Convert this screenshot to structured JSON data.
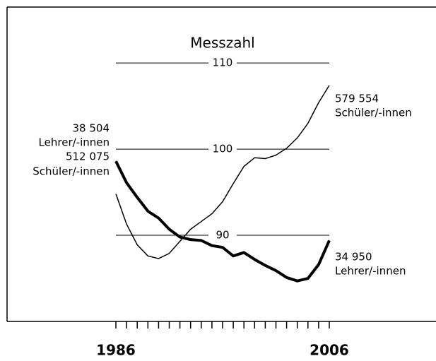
{
  "chart_data": {
    "type": "line",
    "title": "Messzahl",
    "x": [
      1986,
      1987,
      1988,
      1989,
      1990,
      1991,
      1992,
      1993,
      1994,
      1995,
      1996,
      1997,
      1998,
      1999,
      2000,
      2001,
      2002,
      2003,
      2004,
      2005,
      2006
    ],
    "series": [
      {
        "color": "#000000",
        "width": 4,
        "values": [
          98.6,
          96.1,
          94.4,
          92.8,
          92.0,
          90.7,
          89.8,
          89.5,
          89.4,
          88.8,
          88.6,
          87.6,
          88.0,
          87.2,
          86.5,
          85.9,
          85.1,
          84.7,
          85.0,
          86.6,
          89.4
        ]
      },
      {
        "color": "#000000",
        "width": 1.5,
        "values": [
          94.8,
          91.3,
          88.9,
          87.6,
          87.3,
          87.9,
          89.3,
          90.7,
          91.6,
          92.5,
          93.9,
          96.0,
          98.0,
          99.0,
          98.9,
          99.3,
          100.1,
          101.3,
          103.0,
          105.4,
          107.4
        ]
      }
    ],
    "xlim": [
      1986,
      2006
    ],
    "xticks": [
      1986,
      2006
    ],
    "ylim": [
      80,
      116
    ],
    "yticks": [
      90,
      100,
      110
    ],
    "grid": true,
    "annotations": [
      "38 504",
      "Lehrer/-innen",
      "512 075",
      "Schüler/-innen",
      "579 554",
      "Schüler/-innen",
      "34 950",
      "Lehrer/-innen"
    ]
  }
}
